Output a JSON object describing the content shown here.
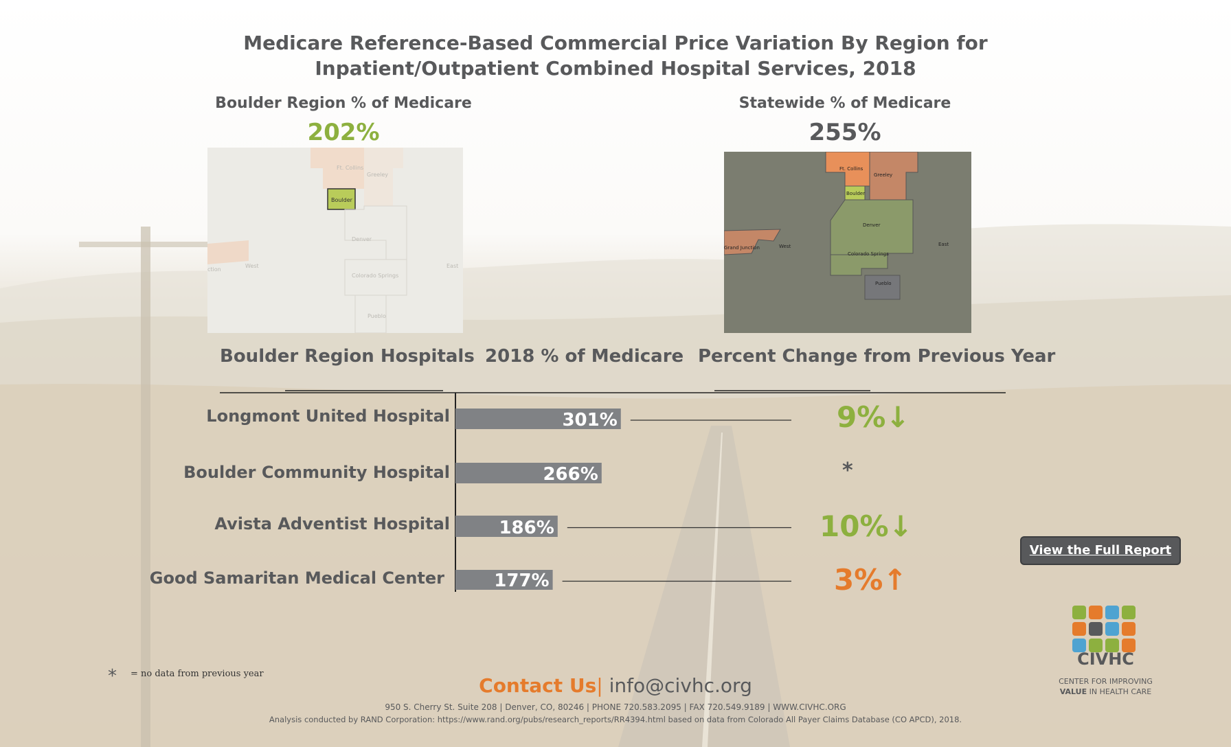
{
  "title_line1": "Medicare Reference-Based Commercial Price Variation By Region for",
  "title_line2": "Inpatient/Outpatient Combined Hospital Services, 2018",
  "region_label": "Boulder Region % of Medicare",
  "region_value": "202%",
  "statewide_label": "Statewide % of Medicare",
  "statewide_value": "255%",
  "maps": {
    "labels": {
      "ft_collins": "Ft. Collins",
      "greeley": "Greeley",
      "boulder": "Boulder",
      "denver": "Denver",
      "west": "West",
      "east": "East",
      "colorado_springs": "Colorado Springs",
      "pueblo": "Pueblo",
      "grand_junction": "Grand Junction",
      "gjn_fragment": "ction"
    }
  },
  "column_headers": {
    "hospitals": "Boulder Region Hospitals",
    "medicare": "2018 % of Medicare",
    "change": "Percent Change from Previous Year"
  },
  "chart_data": {
    "type": "bar",
    "orientation": "horizontal",
    "categories": [
      "Longmont United Hospital",
      "Boulder Community Hospital",
      "Avista Adventist Hospital",
      "Good Samaritan Medical Center"
    ],
    "values": [
      301,
      266,
      186,
      177
    ],
    "value_labels": [
      "301%",
      "266%",
      "186%",
      "177%"
    ],
    "percent_change": [
      {
        "label": "9%",
        "direction": "down",
        "color": "#8db03f"
      },
      {
        "label": "*",
        "direction": "none",
        "color": "#58595b"
      },
      {
        "label": "10%",
        "direction": "down",
        "color": "#8db03f"
      },
      {
        "label": "3%",
        "direction": "up",
        "color": "#e57b2c"
      }
    ],
    "bar_color": "#808285"
  },
  "colors": {
    "green": "#8db03f",
    "orange": "#e57b2c",
    "gray": "#58595b"
  },
  "footnote_symbol": "*",
  "footnote_text": "= no data from previous year",
  "report_button": "View the Full Report",
  "contact_label": "Contact Us",
  "contact_sep": "|",
  "contact_email": "info@civhc.org",
  "address": "950 S. Cherry St. Suite 208 | Denver, CO, 80246 | PHONE 720.583.2095 | FAX 720.549.9189 | WWW.CIVHC.ORG",
  "analysis": "Analysis conducted by RAND Corporation: https://www.rand.org/pubs/research_reports/RR4394.html based on data from Colorado All Payer Claims Database (CO APCD), 2018.",
  "logo": {
    "name": "CIVHC",
    "tagline1": "CENTER FOR IMPROVING",
    "tagline2_bold": "VALUE",
    "tagline2_rest": " IN HEALTH CARE",
    "tile_colors": [
      "#8db03f",
      "#e57b2c",
      "#4fa3d1",
      "#8db03f",
      "#e57b2c",
      "#58595b",
      "#4fa3d1",
      "#e57b2c",
      "#4fa3d1",
      "#8db03f",
      "#8db03f",
      "#e57b2c"
    ]
  }
}
